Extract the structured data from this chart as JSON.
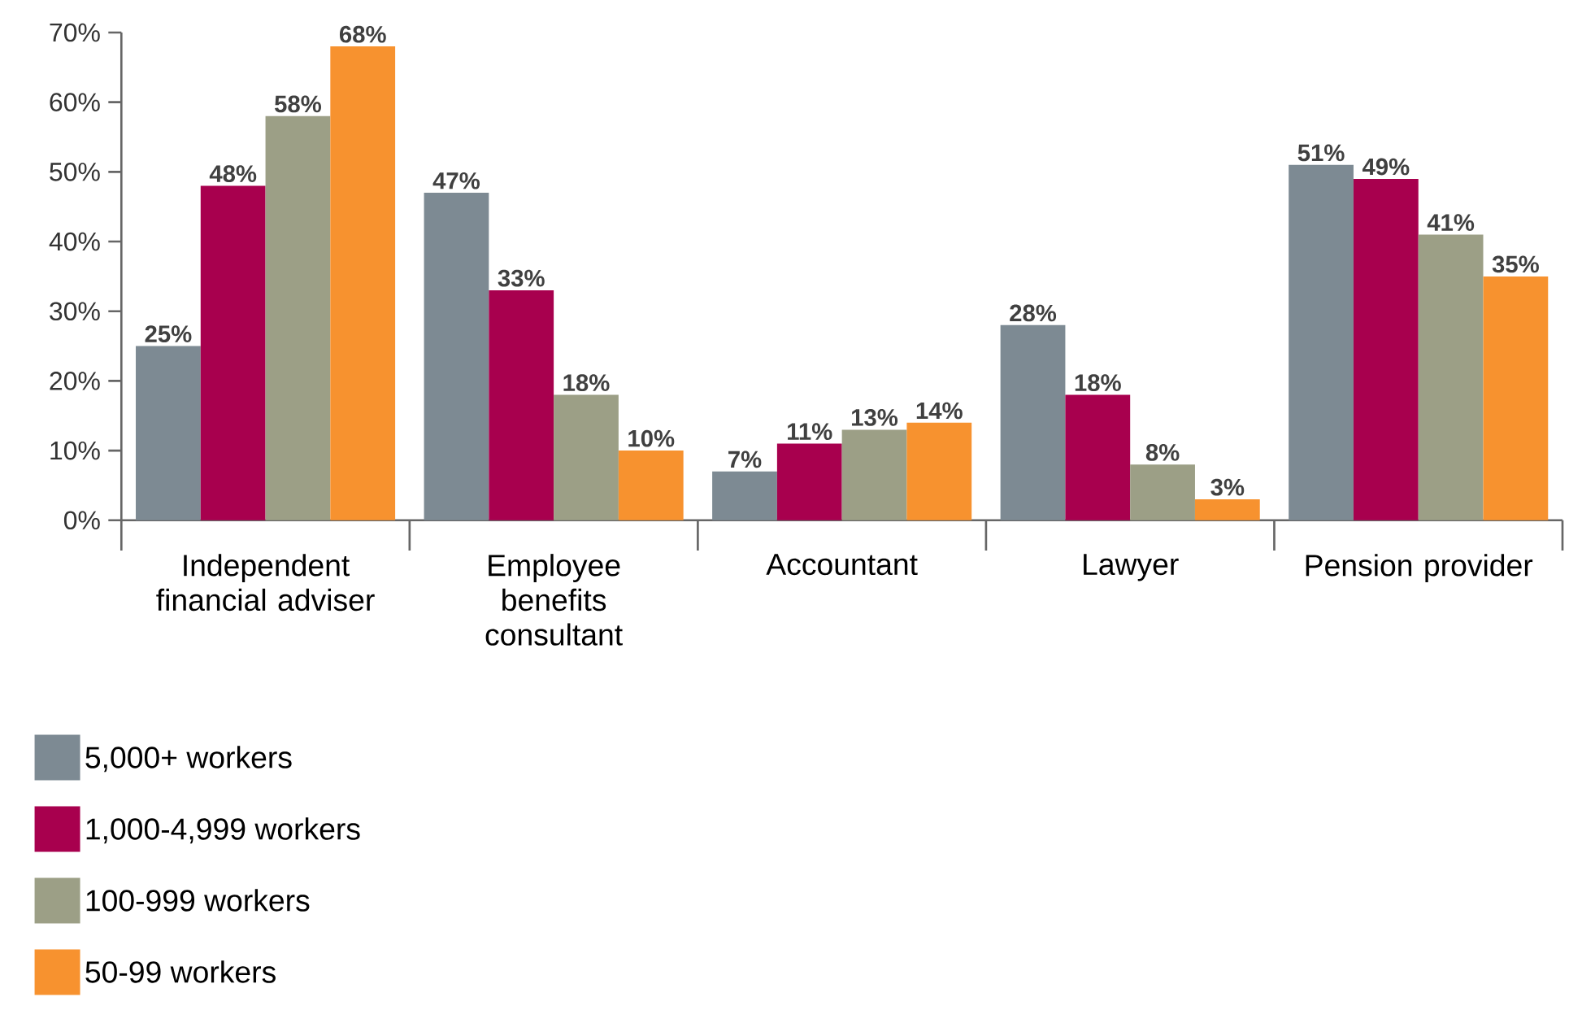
{
  "chart_data": {
    "type": "bar",
    "categories": [
      "Independent financial adviser",
      "Employee benefits consultant",
      "Accountant",
      "Lawyer",
      "Pension provider"
    ],
    "series": [
      {
        "name": "5,000+ workers",
        "color": "#7d8a93",
        "values": [
          25,
          47,
          7,
          28,
          51
        ],
        "value_labels": [
          "25%",
          "47%",
          "7%",
          "28%",
          "51%"
        ]
      },
      {
        "name": "1,000-4,999 workers",
        "color": "#a8004e",
        "values": [
          48,
          33,
          11,
          18,
          49
        ],
        "value_labels": [
          "48%",
          "33%",
          "11%",
          "18%",
          "49%"
        ]
      },
      {
        "name": "100-999 workers",
        "color": "#9c9f86",
        "values": [
          58,
          18,
          13,
          8,
          41
        ],
        "value_labels": [
          "58%",
          "18%",
          "13%",
          "8%",
          "41%"
        ]
      },
      {
        "name": "50-99 workers",
        "color": "#f7922f",
        "values": [
          68,
          10,
          14,
          3,
          35
        ],
        "value_labels": [
          "68%",
          "10%",
          "14%",
          "3%",
          "35%"
        ]
      }
    ],
    "ylim": [
      0,
      70
    ],
    "yticks": [
      {
        "value": 0,
        "label": "0%"
      },
      {
        "value": 10,
        "label": "10%"
      },
      {
        "value": 20,
        "label": "20%"
      },
      {
        "value": 30,
        "label": "30%"
      },
      {
        "value": 40,
        "label": "40%"
      },
      {
        "value": 50,
        "label": "50%"
      },
      {
        "value": 60,
        "label": "60%"
      },
      {
        "value": 70,
        "label": "70%"
      }
    ],
    "grid": false,
    "legend": "bottom left"
  }
}
